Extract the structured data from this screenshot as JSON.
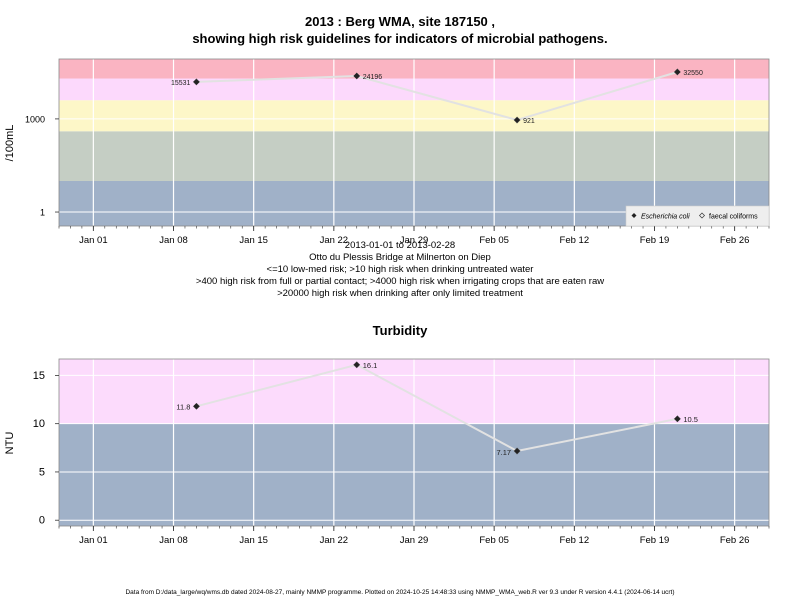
{
  "page": {
    "title_line1": "2013 : Berg WMA, site 187150 ,",
    "title_line2": "showing high risk guidelines for indicators of microbial pathogens.",
    "subtitle_lines": [
      "2013-01-01 to 2013-02-28",
      "Otto du Plessis Bridge at Milnerton on Diep",
      "<=10 low-med risk; >10 high risk when drinking untreated water",
      ">400 high risk from full or partial contact; >4000 high risk when irrigating crops that are eaten raw",
      ">20000 high risk when drinking after only limited treatment"
    ],
    "footer": "Data from D:/data_large/wq/wms.db dated 2024-08-27, mainly NMMP programme. Plotted on 2024-10-25 14:48:33 using NMMP_WMA_web.R ver 9.3 under R version 4.4.1 (2024-06-14 ucrt)"
  },
  "chart_data": [
    {
      "type": "scatter",
      "title": "",
      "ylabel": "/100mL",
      "yscale": "log",
      "yticks": [
        1,
        1000
      ],
      "x_tick_labels": [
        "Jan 01",
        "Jan 08",
        "Jan 15",
        "Jan 22",
        "Jan 29",
        "Feb 05",
        "Feb 12",
        "Feb 19",
        "Feb 26"
      ],
      "x_tick_dates": [
        "2013-01-01",
        "2013-01-08",
        "2013-01-15",
        "2013-01-22",
        "2013-01-29",
        "2013-02-05",
        "2013-02-12",
        "2013-02-19",
        "2013-02-26"
      ],
      "xlim": [
        "2012-12-29",
        "2013-03-01"
      ],
      "risk_bands": [
        {
          "from": 0,
          "to": 10,
          "color": "#a0b1c8"
        },
        {
          "from": 10,
          "to": 400,
          "color": "#c5cec4"
        },
        {
          "from": 400,
          "to": 4000,
          "color": "#fdf7c8"
        },
        {
          "from": 4000,
          "to": 20000,
          "color": "#fcd9fc"
        },
        {
          "from": 20000,
          "to": 100000,
          "color": "#fab4c2"
        }
      ],
      "series": [
        {
          "name": "Escherichia coli",
          "marker": "filled-diamond",
          "x": [
            "2013-01-10",
            "2013-01-24",
            "2013-02-07",
            "2013-02-21"
          ],
          "y": [
            15531,
            24196,
            921,
            32550
          ],
          "labels": [
            "15531",
            "24196",
            "921",
            "32550"
          ]
        }
      ],
      "legend": {
        "position": "bottom-right",
        "entries": [
          "Escherichia coli",
          "faecal coliforms"
        ]
      }
    },
    {
      "type": "scatter",
      "title": "Turbidity",
      "ylabel": "NTU",
      "yscale": "linear",
      "yticks": [
        0,
        5,
        10,
        15
      ],
      "ylim": [
        -0.6,
        16.7
      ],
      "x_tick_labels": [
        "Jan 01",
        "Jan 08",
        "Jan 15",
        "Jan 22",
        "Jan 29",
        "Feb 05",
        "Feb 12",
        "Feb 19",
        "Feb 26"
      ],
      "x_tick_dates": [
        "2013-01-01",
        "2013-01-08",
        "2013-01-15",
        "2013-01-22",
        "2013-01-29",
        "2013-02-05",
        "2013-02-12",
        "2013-02-19",
        "2013-02-26"
      ],
      "xlim": [
        "2012-12-29",
        "2013-03-01"
      ],
      "risk_bands": [
        {
          "from": -1,
          "to": 10,
          "color": "#a0b1c8"
        },
        {
          "from": 10,
          "to": 20,
          "color": "#fcdbfc"
        }
      ],
      "series": [
        {
          "name": "",
          "marker": "filled-diamond",
          "x": [
            "2013-01-10",
            "2013-01-24",
            "2013-02-07",
            "2013-02-21"
          ],
          "y": [
            11.8,
            16.1,
            7.17,
            10.5
          ],
          "labels": [
            "11.8",
            "16.1",
            "7.17",
            "10.5"
          ]
        }
      ]
    }
  ]
}
